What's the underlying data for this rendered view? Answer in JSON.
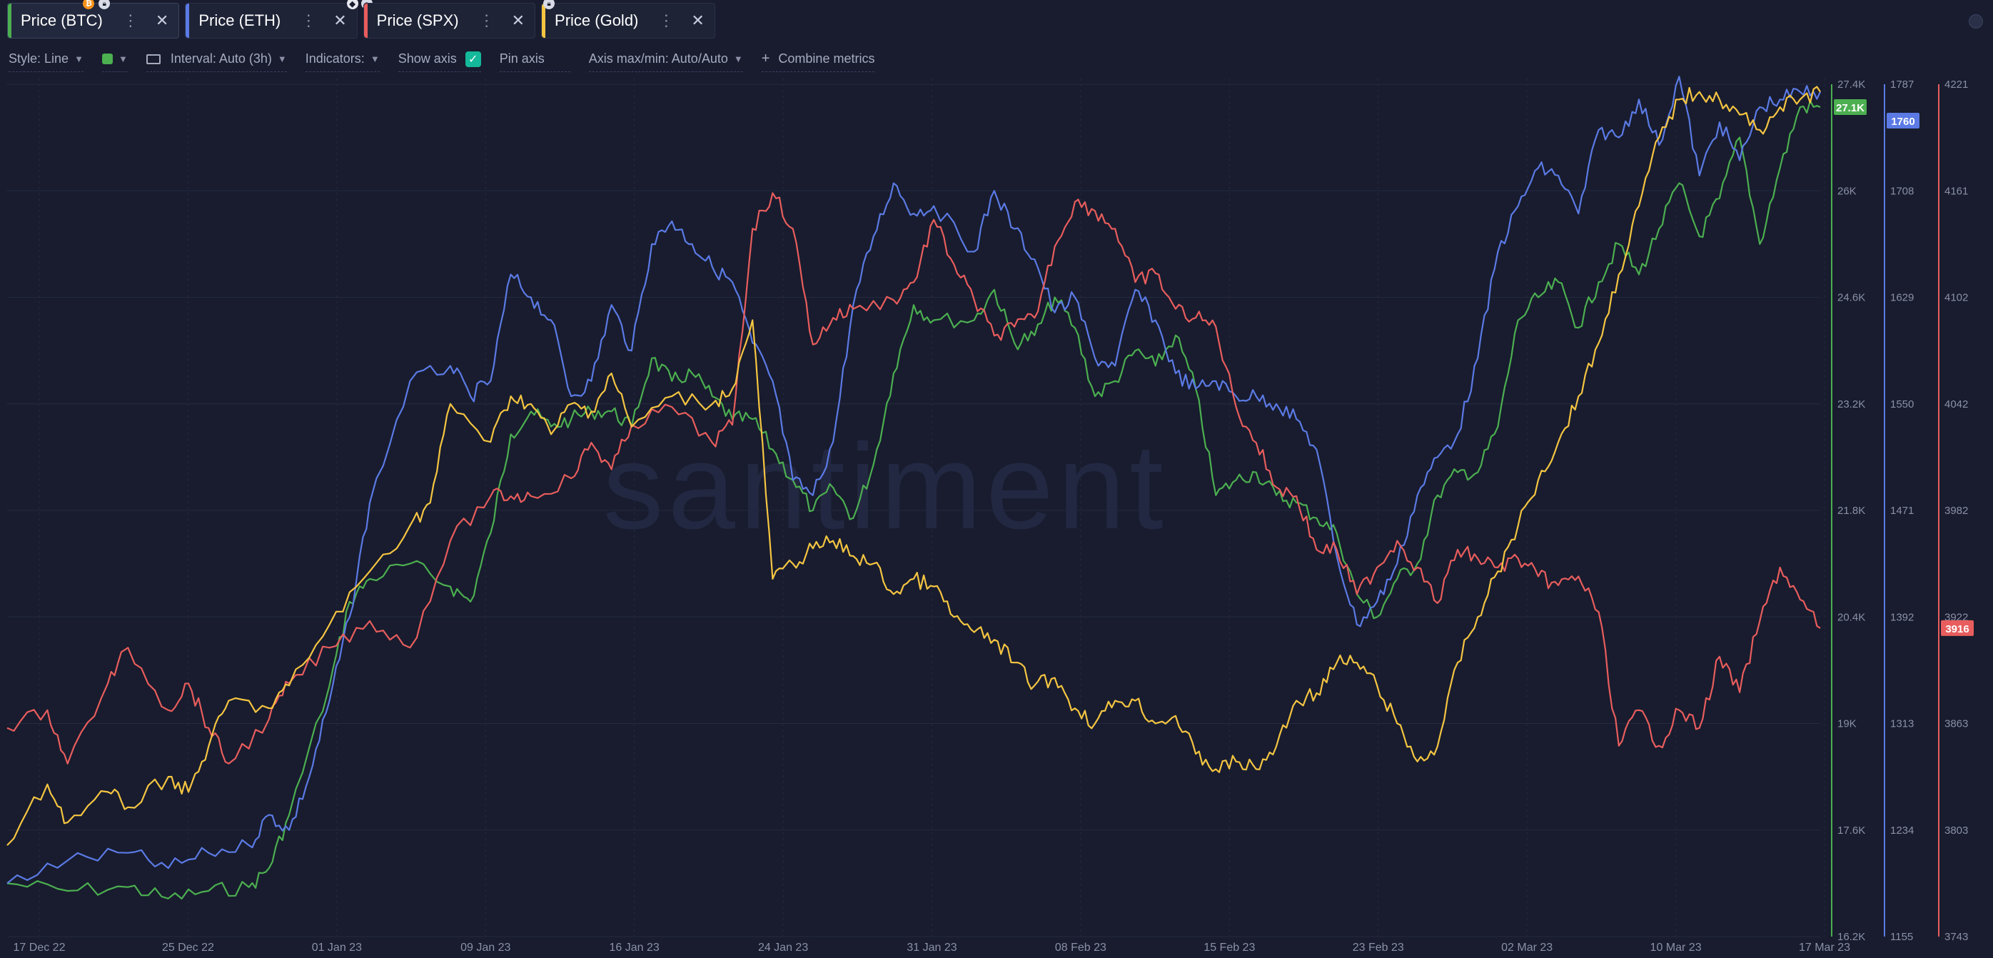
{
  "tabs": [
    {
      "label": "Price (BTC)",
      "color": "#4caf50",
      "badge": "coin",
      "active": true
    },
    {
      "label": "Price (ETH)",
      "color": "#5b7ae5",
      "badge": "lock",
      "active": false
    },
    {
      "label": "Price (SPX)",
      "color": "#e85d5d",
      "badge": "lock",
      "active": false
    },
    {
      "label": "Price (Gold)",
      "color": "#f5c542",
      "badge": "lock",
      "active": false
    }
  ],
  "toolbar": {
    "style_label": "Style: Line",
    "interval_label": "Interval: Auto (3h)",
    "indicators_label": "Indicators:",
    "show_axis_label": "Show axis",
    "pin_axis_label": "Pin axis",
    "axis_minmax_label": "Axis max/min: Auto/Auto",
    "combine_label": "Combine metrics"
  },
  "watermark": "santiment",
  "chart_data": {
    "type": "line",
    "x_ticks": [
      "17 Dec 22",
      "25 Dec 22",
      "01 Jan 23",
      "09 Jan 23",
      "16 Jan 23",
      "24 Jan 23",
      "31 Jan 23",
      "08 Feb 23",
      "15 Feb 23",
      "23 Feb 23",
      "02 Mar 23",
      "10 Mar 23",
      "17 Mar 23"
    ],
    "axes": [
      {
        "series": "Price (BTC)",
        "color": "#4caf50",
        "min": 16200,
        "max": 27400,
        "ticks": [
          "27.4K",
          "26K",
          "24.6K",
          "23.2K",
          "21.8K",
          "20.4K",
          "19K",
          "17.6K",
          "16.2K"
        ],
        "current": "27.1K",
        "current_value": 27100
      },
      {
        "series": "Price (ETH)",
        "color": "#5b7ae5",
        "min": 1155,
        "max": 1787,
        "ticks": [
          "1787",
          "1708",
          "1629",
          "1550",
          "1471",
          "1392",
          "1313",
          "1234",
          "1155"
        ],
        "current": "1760",
        "current_value": 1760
      },
      {
        "series": "Price (SPX)",
        "color": "#e85d5d",
        "min": 3743,
        "max": 4221,
        "ticks": [
          "4221",
          "4161",
          "4102",
          "4042",
          "3982",
          "3922",
          "3863",
          "3803",
          "3743"
        ],
        "current": "3916",
        "current_value": 3916
      }
    ],
    "series": [
      {
        "name": "Price (BTC)",
        "color": "#4caf50",
        "axis": 0,
        "t": [
          0,
          3,
          6,
          8,
          10,
          12,
          13,
          14,
          16,
          17,
          18,
          20,
          22,
          23,
          24,
          25,
          26,
          27,
          28,
          29,
          30,
          31,
          32,
          33,
          34,
          35,
          36,
          37,
          38,
          39,
          40,
          41,
          42,
          43,
          44,
          45,
          46,
          48,
          49,
          50,
          51,
          52,
          53,
          54,
          55,
          56,
          57,
          58,
          59,
          60,
          61,
          62,
          63,
          64,
          65,
          66,
          67,
          68,
          69,
          70,
          71,
          72,
          73,
          74,
          75,
          76,
          77,
          78,
          79,
          80,
          81,
          82,
          83,
          84,
          85,
          86,
          87,
          88,
          89,
          90
        ],
        "y": [
          16900,
          16800,
          16850,
          16700,
          16800,
          16850,
          17100,
          17800,
          19500,
          20600,
          20900,
          21100,
          20800,
          20600,
          21500,
          22800,
          23100,
          22900,
          23000,
          23100,
          23100,
          22900,
          23800,
          23500,
          23600,
          23300,
          23000,
          23000,
          22600,
          22200,
          21800,
          22100,
          21700,
          22400,
          23600,
          24500,
          24300,
          24300,
          24700,
          24000,
          24100,
          24600,
          24200,
          23300,
          23500,
          23900,
          23700,
          24100,
          23400,
          22000,
          22200,
          22300,
          22000,
          21900,
          21700,
          21500,
          20700,
          20400,
          20900,
          21100,
          22000,
          22300,
          22300,
          22900,
          24300,
          24600,
          24800,
          24200,
          24800,
          25300,
          24900,
          25500,
          26100,
          25400,
          25900,
          26700,
          25300,
          26300,
          27100,
          27100
        ]
      },
      {
        "name": "Price (ETH)",
        "color": "#5b7ae5",
        "axis": 0,
        "t": [
          0,
          3,
          6,
          8,
          10,
          12,
          13,
          14,
          15,
          16,
          17,
          18,
          20,
          22,
          23,
          24,
          25,
          26,
          27,
          28,
          29,
          30,
          31,
          32,
          33,
          34,
          35,
          36,
          37,
          38,
          39,
          40,
          41,
          42,
          43,
          44,
          45,
          46,
          48,
          49,
          50,
          51,
          52,
          53,
          54,
          55,
          56,
          57,
          58,
          59,
          60,
          61,
          62,
          63,
          64,
          65,
          66,
          67,
          68,
          69,
          70,
          71,
          72,
          73,
          74,
          75,
          76,
          77,
          78,
          79,
          80,
          81,
          82,
          83,
          84,
          85,
          86,
          87,
          88,
          89,
          90
        ],
        "y": [
          16900,
          17200,
          17300,
          17100,
          17300,
          17400,
          17800,
          17600,
          18300,
          19300,
          20400,
          21900,
          23500,
          23700,
          23300,
          23500,
          24900,
          24600,
          24300,
          23300,
          23500,
          24500,
          23900,
          25300,
          25600,
          25300,
          25000,
          24800,
          24000,
          23500,
          22200,
          22000,
          22700,
          24500,
          25400,
          26100,
          25700,
          25800,
          25200,
          26000,
          25500,
          25100,
          24400,
          24600,
          23800,
          23700,
          24700,
          24300,
          23600,
          23400,
          23500,
          23300,
          23300,
          23200,
          23000,
          22600,
          21200,
          20300,
          20600,
          21100,
          22000,
          22500,
          22800,
          23800,
          25200,
          25800,
          26300,
          26200,
          25700,
          26800,
          26700,
          27200,
          26600,
          27500,
          26200,
          26900,
          26400,
          27100,
          27200,
          27300,
          27300
        ]
      },
      {
        "name": "Price (SPX)",
        "color": "#e85d5d",
        "axis": 2,
        "t": [
          0,
          2,
          3,
          5,
          6,
          8,
          9,
          10,
          11,
          13,
          14,
          16,
          18,
          20,
          22,
          24,
          25,
          26,
          28,
          29,
          30,
          31,
          33,
          35,
          36,
          37,
          38,
          39,
          40,
          41,
          42,
          44,
          45,
          46,
          47,
          48,
          49,
          50,
          51,
          52,
          53,
          54,
          55,
          56,
          57,
          58,
          59,
          60,
          61,
          62,
          63,
          64,
          65,
          66,
          67,
          68,
          69,
          70,
          71,
          72,
          73,
          74,
          75,
          76,
          77,
          78,
          79,
          80,
          81,
          82,
          83,
          84,
          85,
          86,
          87,
          88,
          89,
          90
        ],
        "y": [
          3860,
          3870,
          3840,
          3885,
          3905,
          3870,
          3885,
          3860,
          3840,
          3865,
          3885,
          3905,
          3920,
          3905,
          3965,
          3990,
          3990,
          3990,
          4000,
          4020,
          4005,
          4030,
          4040,
          4020,
          4030,
          4140,
          4160,
          4140,
          4075,
          4090,
          4095,
          4100,
          4110,
          4145,
          4120,
          4100,
          4080,
          4085,
          4090,
          4130,
          4155,
          4150,
          4140,
          4110,
          4115,
          4095,
          4090,
          4085,
          4040,
          4020,
          3995,
          3990,
          3960,
          3960,
          3935,
          3950,
          3965,
          3950,
          3930,
          3960,
          3955,
          3950,
          3955,
          3945,
          3940,
          3945,
          3925,
          3850,
          3870,
          3850,
          3870,
          3860,
          3900,
          3880,
          3920,
          3950,
          3932,
          3916
        ]
      },
      {
        "name": "Price (Gold)",
        "color": "#f5c542",
        "axis": 0,
        "t": [
          0,
          2,
          3,
          5,
          6,
          8,
          9,
          10,
          11,
          13,
          14,
          16,
          18,
          20,
          21,
          22,
          24,
          25,
          26,
          27,
          28,
          29,
          30,
          31,
          33,
          35,
          36,
          37,
          38,
          39,
          40,
          41,
          42,
          43,
          44,
          45,
          46,
          47,
          48,
          49,
          50,
          51,
          52,
          53,
          54,
          55,
          56,
          57,
          58,
          59,
          60,
          61,
          62,
          63,
          64,
          65,
          66,
          67,
          68,
          69,
          70,
          71,
          72,
          73,
          74,
          75,
          76,
          77,
          78,
          79,
          80,
          81,
          82,
          83,
          84,
          85,
          86,
          87,
          88,
          89,
          90
        ],
        "y": [
          17400,
          18200,
          17700,
          18100,
          17900,
          18300,
          18100,
          18700,
          19300,
          19200,
          19500,
          20300,
          21000,
          21600,
          21900,
          23200,
          22700,
          23300,
          23200,
          22800,
          23200,
          23100,
          23600,
          22900,
          23300,
          23200,
          23400,
          24300,
          20900,
          21100,
          21300,
          21400,
          21200,
          21100,
          20700,
          20900,
          20800,
          20400,
          20200,
          20100,
          19800,
          19500,
          19600,
          19200,
          19000,
          19300,
          19300,
          19000,
          19100,
          18600,
          18400,
          18500,
          18400,
          18700,
          19300,
          19400,
          19800,
          19800,
          19500,
          19000,
          18500,
          18700,
          19800,
          20400,
          21000,
          21600,
          22200,
          22700,
          23300,
          24000,
          24900,
          25800,
          26700,
          27200,
          27300,
          27200,
          27000,
          26800,
          27100,
          27200,
          27300
        ]
      }
    ]
  }
}
